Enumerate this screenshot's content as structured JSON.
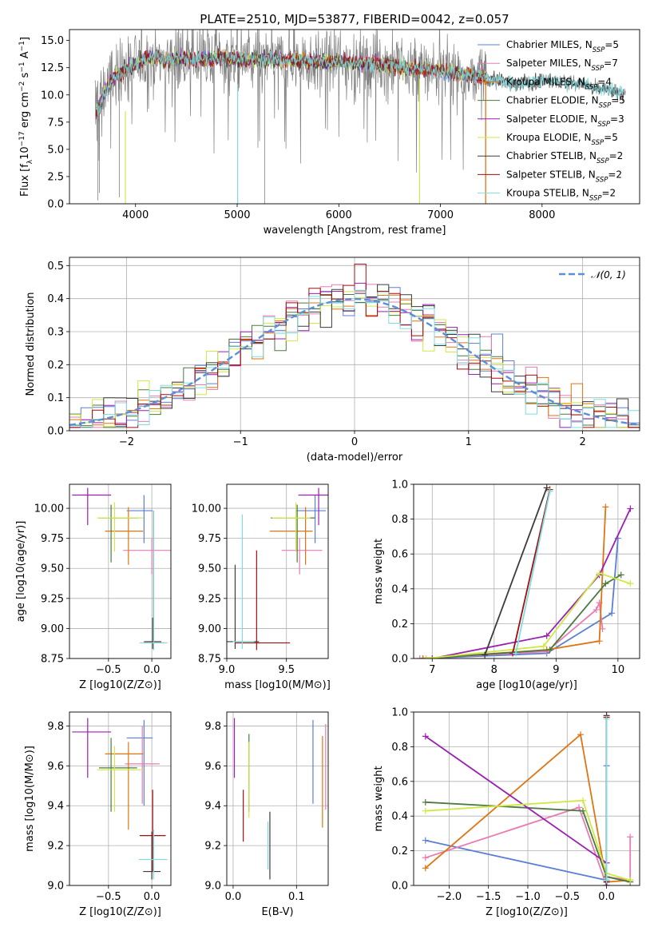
{
  "figure_title": "PLATE=2510, MJD=53877, FIBERID=0042, z=0.057",
  "colors": {
    "chabrier_miles": "#5b7fd6",
    "salpeter_miles": "#e87bb2",
    "kroupa_miles": "#e07412",
    "chabrier_elodie": "#4a7a3e",
    "salpeter_elodie": "#9a1fb2",
    "kroupa_elodie": "#cfe843",
    "chabrier_stelib": "#3b3b3b",
    "salpeter_stelib": "#a40e0e",
    "kroupa_stelib": "#7fdde0",
    "data": "#808080",
    "normal": "#5b8fd6"
  },
  "chart_data": [
    {
      "id": "spectrum",
      "type": "line",
      "title": "PLATE=2510, MJD=53877, FIBERID=0042, z=0.057",
      "xlabel": "wavelength [Angstrom, rest frame]",
      "ylabel": "Flux [f_λ 10^-17 erg cm^-2 s^-1 A^-1]",
      "xlim": [
        3350,
        8960
      ],
      "ylim": [
        0,
        16
      ],
      "xticks": [
        "4000",
        "5000",
        "6000",
        "7000",
        "8000"
      ],
      "yticks": [
        "0.0",
        "2.5",
        "5.0",
        "7.5",
        "10.0",
        "12.5",
        "15.0"
      ],
      "legend_placement": "upper right",
      "legend": [
        {
          "label": "Chabrier MILES",
          "n_ssp": 5
        },
        {
          "label": "Salpeter MILES",
          "n_ssp": 7
        },
        {
          "label": "Kroupa MILES",
          "n_ssp": 4
        },
        {
          "label": "Chabrier ELODIE",
          "n_ssp": 5
        },
        {
          "label": "Salpeter ELODIE",
          "n_ssp": 3
        },
        {
          "label": "Kroupa ELODIE",
          "n_ssp": 5
        },
        {
          "label": "Chabrier STELIB",
          "n_ssp": 2
        },
        {
          "label": "Salpeter STELIB",
          "n_ssp": 2
        },
        {
          "label": "Kroupa STELIB",
          "n_ssp": 2
        }
      ],
      "legend_suffix": "SSP",
      "continuum_envelope": {
        "x": [
          3600,
          3650,
          3700,
          3800,
          3900,
          4000,
          4100,
          4200,
          4300,
          4400,
          4500,
          4600,
          4800,
          5000,
          5200,
          5500,
          5800,
          6000,
          6300,
          6600,
          7000,
          7300,
          7450,
          7600,
          7800,
          8000,
          8200,
          8400,
          8600,
          8800
        ],
        "y": [
          8.2,
          9.0,
          10.5,
          11.8,
          12.3,
          12.8,
          13.3,
          13.5,
          13.2,
          13.4,
          13.3,
          13.3,
          13.4,
          13.3,
          13.2,
          13.2,
          13.1,
          13.0,
          12.9,
          12.6,
          12.2,
          11.8,
          11.6,
          11.2,
          11.0,
          11.4,
          11.2,
          11.0,
          10.5,
          10.2
        ]
      }
    },
    {
      "id": "residuals",
      "type": "step",
      "xlabel": "(data-model)/error",
      "ylabel": "Normed distribution",
      "xlim": [
        -2.5,
        2.5
      ],
      "ylim": [
        0,
        0.525
      ],
      "xticks": [
        "−2",
        "−1",
        "0",
        "1",
        "2"
      ],
      "yticks": [
        "0.0",
        "0.1",
        "0.2",
        "0.3",
        "0.4",
        "0.5"
      ],
      "grid": true,
      "legend_placement": "upper right",
      "legend": [
        {
          "label": "𝒩(0, 1)"
        }
      ],
      "bin_width": 0.1
    },
    {
      "id": "z-vs-age",
      "type": "errorbar",
      "xlabel": "Z [log10(Z/Z⊙)]",
      "ylabel": "age [log10(age/yr)]",
      "xlim": [
        -0.95,
        0.22
      ],
      "ylim": [
        8.75,
        10.2
      ],
      "xticks": [
        "−0.5",
        "0.0"
      ],
      "yticks": [
        "8.75",
        "9.00",
        "9.25",
        "9.50",
        "9.75",
        "10.00"
      ],
      "grid": true,
      "points": [
        {
          "x": -0.09,
          "xerr": [
            0.2,
            0.1
          ],
          "y": 9.98,
          "yerr": [
            0.27,
            0.13
          ]
        },
        {
          "x": 0.0,
          "xerr": [
            0.33,
            0.23
          ],
          "y": 9.65,
          "yerr": [
            0.2,
            0.1
          ]
        },
        {
          "x": -0.27,
          "xerr": [
            0.27,
            0.17
          ],
          "y": 9.81,
          "yerr": [
            0.28,
            0.2
          ]
        },
        {
          "x": -0.47,
          "xerr": [
            0.14,
            0.3
          ],
          "y": 9.92,
          "yerr": [
            0.37,
            0.11
          ]
        },
        {
          "x": -0.74,
          "xerr": [
            0.18,
            0.27
          ],
          "y": 10.11,
          "yerr": [
            0.25,
            0.06
          ]
        },
        {
          "x": -0.43,
          "xerr": [
            0.2,
            0.33
          ],
          "y": 9.92,
          "yerr": [
            0.28,
            0.13
          ]
        },
        {
          "x": 0.01,
          "xerr": [
            0.1,
            0.1
          ],
          "y": 8.89,
          "yerr": [
            0.06,
            0.2
          ]
        },
        {
          "x": 0.02,
          "xerr": [
            0.12,
            0.12
          ],
          "y": 8.88,
          "yerr": [
            0.06,
            1.1
          ]
        },
        {
          "x": 0.02,
          "xerr": [
            0.16,
            0.16
          ],
          "y": 8.88,
          "yerr": [
            0.06,
            1.1
          ]
        }
      ]
    },
    {
      "id": "mass-vs-age",
      "type": "errorbar",
      "xlabel": "mass [log10(M/M⊙)]",
      "ylabel": "",
      "xlim": [
        9.0,
        9.85
      ],
      "ylim": [
        8.75,
        10.2
      ],
      "xticks": [
        "9.0",
        "9.5"
      ],
      "yticks": [
        "8.75",
        "9.00",
        "9.25",
        "9.50",
        "9.75",
        "10.00"
      ],
      "grid": true,
      "points": [
        {
          "x": 9.74,
          "xerr": [
            0.16,
            0.09
          ],
          "y": 9.98,
          "yerr": [
            0.27,
            0.13
          ]
        },
        {
          "x": 9.61,
          "xerr": [
            0.15,
            0.19
          ],
          "y": 9.65,
          "yerr": [
            0.2,
            0.1
          ]
        },
        {
          "x": 9.66,
          "xerr": [
            0.3,
            0.06
          ],
          "y": 9.81,
          "yerr": [
            0.28,
            0.2
          ]
        },
        {
          "x": 9.59,
          "xerr": [
            0.22,
            0.15
          ],
          "y": 9.92,
          "yerr": [
            0.37,
            0.11
          ]
        },
        {
          "x": 9.77,
          "xerr": [
            0.17,
            0.16
          ],
          "y": 10.11,
          "yerr": [
            0.25,
            0.06
          ]
        },
        {
          "x": 9.58,
          "xerr": [
            0.2,
            0.12
          ],
          "y": 9.92,
          "yerr": [
            0.28,
            0.13
          ]
        },
        {
          "x": 9.07,
          "xerr": [
            0.09,
            0.2
          ],
          "y": 8.89,
          "yerr": [
            0.06,
            0.64
          ]
        },
        {
          "x": 9.25,
          "xerr": [
            0.18,
            0.28
          ],
          "y": 8.88,
          "yerr": [
            0.06,
            0.77
          ]
        },
        {
          "x": 9.13,
          "xerr": [
            0.08,
            0.1
          ],
          "y": 8.89,
          "yerr": [
            0.06,
            1.06
          ]
        }
      ]
    },
    {
      "id": "weight-vs-age",
      "type": "line",
      "xlabel": "age [log10(age/yr)]",
      "ylabel": "mass weight",
      "xlim": [
        6.7,
        10.35
      ],
      "ylim": [
        0,
        1.0
      ],
      "xticks": [
        "7",
        "8",
        "9",
        "10"
      ],
      "yticks": [
        "0.0",
        "0.2",
        "0.4",
        "0.6",
        "0.8",
        "1.0"
      ],
      "grid": true,
      "series": [
        {
          "x": [
            6.85,
            8.85,
            9.9,
            10.0
          ],
          "y": [
            0.0,
            0.03,
            0.26,
            0.69
          ]
        },
        {
          "x": [
            6.8,
            8.85,
            9.65,
            9.7,
            9.75
          ],
          "y": [
            0.0,
            0.04,
            0.28,
            0.32,
            0.17
          ]
        },
        {
          "x": [
            6.85,
            8.85,
            9.7,
            9.8
          ],
          "y": [
            0.0,
            0.05,
            0.1,
            0.87
          ]
        },
        {
          "x": [
            6.9,
            8.9,
            9.8,
            10.05
          ],
          "y": [
            0.0,
            0.05,
            0.43,
            0.48
          ]
        },
        {
          "x": [
            7.0,
            8.85,
            9.7,
            10.2
          ],
          "y": [
            0.0,
            0.13,
            0.48,
            0.86
          ]
        },
        {
          "x": [
            6.9,
            8.8,
            9.7,
            10.2
          ],
          "y": [
            0.0,
            0.07,
            0.49,
            0.43
          ]
        },
        {
          "x": [
            7.85,
            8.85
          ],
          "y": [
            0.02,
            0.98
          ]
        },
        {
          "x": [
            8.3,
            8.9
          ],
          "y": [
            0.03,
            0.97
          ]
        },
        {
          "x": [
            8.35,
            8.9
          ],
          "y": [
            0.03,
            0.96
          ]
        }
      ]
    },
    {
      "id": "z-vs-mass",
      "type": "errorbar",
      "xlabel": "Z [log10(Z/Z⊙)]",
      "ylabel": "mass [log10(M/M⊙)]",
      "xlim": [
        -0.95,
        0.22
      ],
      "ylim": [
        9.0,
        9.87
      ],
      "xticks": [
        "−0.5",
        "0.0"
      ],
      "yticks": [
        "9.0",
        "9.2",
        "9.4",
        "9.6",
        "9.8"
      ],
      "grid": true,
      "points": [
        {
          "x": -0.09,
          "xerr": [
            0.2,
            0.1
          ],
          "y": 9.74,
          "yerr": [
            0.34,
            0.09
          ]
        },
        {
          "x": -0.11,
          "xerr": [
            0.2,
            0.2
          ],
          "y": 9.61,
          "yerr": [
            0.2,
            0.19
          ]
        },
        {
          "x": -0.27,
          "xerr": [
            0.27,
            0.17
          ],
          "y": 9.66,
          "yerr": [
            0.38,
            0.06
          ]
        },
        {
          "x": -0.47,
          "xerr": [
            0.14,
            0.3
          ],
          "y": 9.59,
          "yerr": [
            0.22,
            0.15
          ]
        },
        {
          "x": -0.74,
          "xerr": [
            0.18,
            0.27
          ],
          "y": 9.77,
          "yerr": [
            0.23,
            0.07
          ]
        },
        {
          "x": -0.43,
          "xerr": [
            0.2,
            0.33
          ],
          "y": 9.58,
          "yerr": [
            0.21,
            0.12
          ]
        },
        {
          "x": 0.0,
          "xerr": [
            0.1,
            0.1
          ],
          "y": 9.07,
          "yerr": [
            0.04,
            0.2
          ]
        },
        {
          "x": 0.01,
          "xerr": [
            0.15,
            0.15
          ],
          "y": 9.25,
          "yerr": [
            0.18,
            0.23
          ]
        },
        {
          "x": 0.02,
          "xerr": [
            0.17,
            0.16
          ],
          "y": 9.13,
          "yerr": [
            0.1,
            0.15
          ]
        }
      ]
    },
    {
      "id": "ebv-vs-mass",
      "type": "errorbar",
      "xlabel": "E(B-V)",
      "ylabel": "",
      "xlim": [
        -0.01,
        0.15
      ],
      "ylim": [
        9.0,
        9.87
      ],
      "xticks": [
        "0.0",
        "0.1"
      ],
      "yticks": [
        "9.0",
        "9.2",
        "9.4",
        "9.6",
        "9.8"
      ],
      "grid": true,
      "points": [
        {
          "x": 0.126,
          "y": 9.62,
          "yerr": [
            0.21,
            0.21
          ]
        },
        {
          "x": 0.146,
          "y": 9.59,
          "yerr": [
            0.21,
            0.22
          ]
        },
        {
          "x": 0.141,
          "y": 9.52,
          "yerr": [
            0.23,
            0.23
          ]
        },
        {
          "x": 0.025,
          "y": 9.56,
          "yerr": [
            0.19,
            0.2
          ]
        },
        {
          "x": 0.002,
          "y": 9.69,
          "yerr": [
            0.15,
            0.15
          ]
        },
        {
          "x": 0.025,
          "y": 9.53,
          "yerr": [
            0.19,
            0.19
          ]
        },
        {
          "x": 0.058,
          "y": 9.2,
          "yerr": [
            0.17,
            0.17
          ]
        },
        {
          "x": 0.016,
          "y": 9.35,
          "yerr": [
            0.13,
            0.13
          ]
        },
        {
          "x": 0.055,
          "y": 9.2,
          "yerr": [
            0.12,
            0.12
          ]
        }
      ]
    },
    {
      "id": "weight-vs-z",
      "type": "line",
      "xlabel": "Z [log10(Z/Z⊙)]",
      "ylabel": "mass weight",
      "xlim": [
        -2.45,
        0.42
      ],
      "ylim": [
        0,
        1.0
      ],
      "xticks": [
        "−2.0",
        "−1.5",
        "−1.0",
        "−0.5",
        "0.0"
      ],
      "yticks": [
        "0.0",
        "0.2",
        "0.4",
        "0.6",
        "0.8",
        "1.0"
      ],
      "grid": true,
      "series": [
        {
          "x": [
            -2.3,
            0.0,
            0.0,
            0.0
          ],
          "y": [
            0.26,
            0.03,
            0.69,
            0.0
          ]
        },
        {
          "x": [
            -2.3,
            -0.35,
            0.0,
            0.0,
            0.3,
            0.3
          ],
          "y": [
            0.16,
            0.45,
            0.0,
            0.05,
            0.03,
            0.28
          ]
        },
        {
          "x": [
            -2.3,
            -0.33,
            0.0,
            0.3
          ],
          "y": [
            0.1,
            0.87,
            0.02,
            0.03
          ]
        },
        {
          "x": [
            -2.3,
            -0.3,
            0.0,
            0.3
          ],
          "y": [
            0.48,
            0.43,
            0.05,
            0.02
          ]
        },
        {
          "x": [
            -2.3,
            0.0,
            0.0
          ],
          "y": [
            0.86,
            0.13,
            0.0
          ]
        },
        {
          "x": [
            -2.3,
            -0.3,
            0.0,
            0.3
          ],
          "y": [
            0.43,
            0.49,
            0.07,
            0.03
          ]
        },
        {
          "x": [
            0.0,
            0.0
          ],
          "y": [
            0.02,
            0.98
          ]
        },
        {
          "x": [
            0.0,
            0.0
          ],
          "y": [
            0.03,
            0.97
          ]
        },
        {
          "x": [
            0.0,
            0.0
          ],
          "y": [
            0.03,
            0.96
          ]
        }
      ]
    }
  ]
}
